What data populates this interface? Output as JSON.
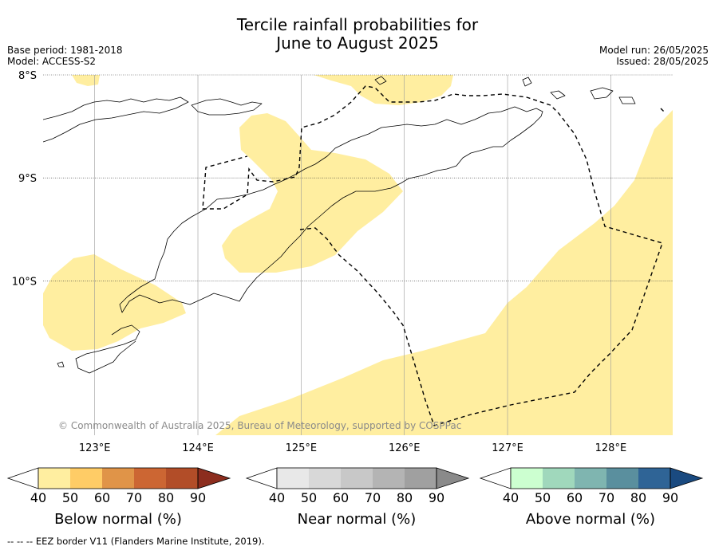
{
  "title_line1": "Tercile rainfall probabilities for",
  "title_line2": "June to August 2025",
  "base_period": "Base period: 1981-2018",
  "model": "Model: ACCESS-S2",
  "model_run": "Model run: 26/05/2025",
  "issued": "Issued: 28/05/2025",
  "copyright": "© Commonwealth of Australia 2025, Bureau of Meteorology, supported by COSPPac",
  "map": {
    "lon_range": [
      122.5,
      128.6
    ],
    "lat_range": [
      -11.5,
      -8.0
    ],
    "lon_ticks": [
      {
        "value": 123,
        "label": "123°E"
      },
      {
        "value": 124,
        "label": "124°E"
      },
      {
        "value": 125,
        "label": "125°E"
      },
      {
        "value": 126,
        "label": "126°E"
      },
      {
        "value": 127,
        "label": "127°E"
      },
      {
        "value": 128,
        "label": "128°E"
      }
    ],
    "lat_ticks": [
      {
        "value": -8,
        "label": "8°S"
      },
      {
        "value": -9,
        "label": "9°S"
      },
      {
        "value": -10,
        "label": "10°S"
      }
    ],
    "colors": {
      "below_40_50": "#ffeea0",
      "coastline": "#000000",
      "eez_border": "#000000",
      "grid": "#9a9a9a"
    }
  },
  "legends": [
    {
      "label": "Below normal (%)",
      "ticks": [
        "40",
        "50",
        "60",
        "70",
        "80",
        "90"
      ],
      "colors": [
        "#ffeea0",
        "#ffcc66",
        "#e09448",
        "#cc6633",
        "#b24d28",
        "#8c2d1e"
      ]
    },
    {
      "label": "Near normal (%)",
      "ticks": [
        "40",
        "50",
        "60",
        "70",
        "80",
        "90"
      ],
      "colors": [
        "#e8e8e8",
        "#d8d8d8",
        "#c8c8c8",
        "#b4b4b4",
        "#a0a0a0",
        "#8a8a8a"
      ]
    },
    {
      "label": "Above normal (%)",
      "ticks": [
        "40",
        "50",
        "60",
        "70",
        "80",
        "90"
      ],
      "colors": [
        "#ccffd0",
        "#a0d8bc",
        "#7fb5b0",
        "#5a8f9e",
        "#2f6496",
        "#1a4a80"
      ]
    }
  ],
  "footnote": "--  --  -- EEZ border V11 (Flanders Marine Institute, 2019)."
}
